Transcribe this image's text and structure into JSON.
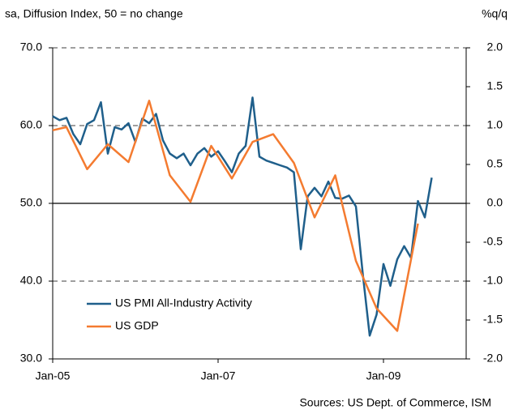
{
  "chart_data": {
    "type": "line",
    "title": "sa, Diffusion Index, 50 = no change",
    "y2_label": "%q/q",
    "source": "Sources: US Dept. of Commerce, ISM",
    "xlim": [
      "2005-01",
      "2010-01"
    ],
    "xticks": [
      {
        "value": "2005-01",
        "label": "Jan-05"
      },
      {
        "value": "2007-01",
        "label": "Jan-07"
      },
      {
        "value": "2009-01",
        "label": "Jan-09"
      }
    ],
    "ylim": [
      30,
      70
    ],
    "yticks": [
      {
        "value": 30,
        "label": "30.0"
      },
      {
        "value": 40,
        "label": "40.0"
      },
      {
        "value": 50,
        "label": "50.0"
      },
      {
        "value": 60,
        "label": "60.0"
      },
      {
        "value": 70,
        "label": "70.0"
      }
    ],
    "y2lim": [
      -2,
      2
    ],
    "y2ticks": [
      {
        "value": -2,
        "label": "-2.0"
      },
      {
        "value": -1.5,
        "label": "-1.5"
      },
      {
        "value": -1,
        "label": "-1.0"
      },
      {
        "value": -0.5,
        "label": "-0.5"
      },
      {
        "value": 0,
        "label": "0.0"
      },
      {
        "value": 0.5,
        "label": "0.5"
      },
      {
        "value": 1,
        "label": "1.0"
      },
      {
        "value": 1.5,
        "label": "1.5"
      },
      {
        "value": 2,
        "label": "2.0"
      }
    ],
    "grid": true,
    "reference_line": 50,
    "legend": "lower left",
    "series": [
      {
        "name": "US PMI All-Industry Activity",
        "color": "#1f5f8b",
        "x": [
          "2005-01",
          "2005-02",
          "2005-03",
          "2005-04",
          "2005-05",
          "2005-06",
          "2005-07",
          "2005-08",
          "2005-09",
          "2005-10",
          "2005-11",
          "2005-12",
          "2006-01",
          "2006-02",
          "2006-03",
          "2006-04",
          "2006-05",
          "2006-06",
          "2006-07",
          "2006-08",
          "2006-09",
          "2006-10",
          "2006-11",
          "2006-12",
          "2007-01",
          "2007-02",
          "2007-03",
          "2007-04",
          "2007-05",
          "2007-06",
          "2007-07",
          "2007-08",
          "2007-09",
          "2007-10",
          "2007-11",
          "2007-12",
          "2008-01",
          "2008-02",
          "2008-03",
          "2008-04",
          "2008-05",
          "2008-06",
          "2008-07",
          "2008-08",
          "2008-09",
          "2008-10",
          "2008-11",
          "2008-12",
          "2009-01",
          "2009-02",
          "2009-03",
          "2009-04",
          "2009-05",
          "2009-06",
          "2009-07",
          "2009-08"
        ],
        "values": [
          61.2,
          60.7,
          61.0,
          58.9,
          57.6,
          60.2,
          60.7,
          63.0,
          56.4,
          59.8,
          59.5,
          60.3,
          57.9,
          60.9,
          60.3,
          61.5,
          58.1,
          56.4,
          55.8,
          56.4,
          54.9,
          56.4,
          57.1,
          56.0,
          56.7,
          55.4,
          54.0,
          56.4,
          57.4,
          63.6,
          56.0,
          55.5,
          55.2,
          54.9,
          54.6,
          54.0,
          44.1,
          50.9,
          52.0,
          50.9,
          52.8,
          50.7,
          50.6,
          51.0,
          49.6,
          40.9,
          33.0,
          35.7,
          42.2,
          39.4,
          42.8,
          44.5,
          43.0,
          50.3,
          48.2,
          53.3
        ]
      },
      {
        "name": "US GDP",
        "color": "#f47b30",
        "axis": "y2",
        "x": [
          "2005-01",
          "2005-03",
          "2005-06",
          "2005-09",
          "2005-12",
          "2006-03",
          "2006-06",
          "2006-09",
          "2006-12",
          "2007-03",
          "2007-06",
          "2007-09",
          "2007-12",
          "2008-03",
          "2008-06",
          "2008-09",
          "2008-12",
          "2009-03",
          "2009-06"
        ],
        "values": [
          0.94,
          0.98,
          0.44,
          0.76,
          0.53,
          1.32,
          0.36,
          0.02,
          0.74,
          0.32,
          0.79,
          0.89,
          0.52,
          -0.18,
          0.36,
          -0.74,
          -1.35,
          -1.64,
          -0.26
        ]
      }
    ]
  }
}
